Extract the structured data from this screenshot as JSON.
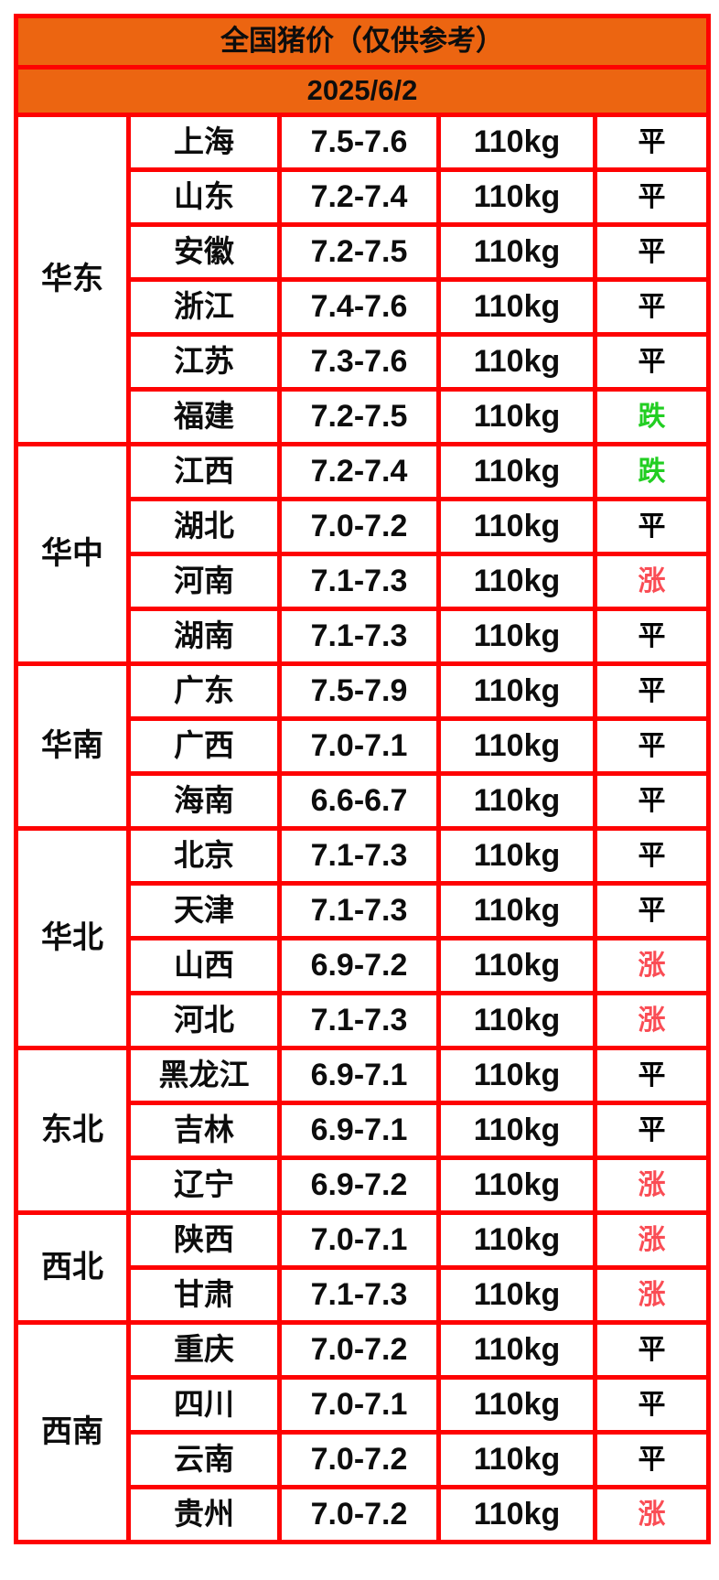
{
  "header": {
    "title": "全国猪价（仅供参考）",
    "date": "2025/6/2"
  },
  "table": {
    "regions": [
      {
        "name": "华东",
        "rows": [
          {
            "province": "上海",
            "price": "7.5-7.6",
            "weight": "110kg",
            "trend": "平"
          },
          {
            "province": "山东",
            "price": "7.2-7.4",
            "weight": "110kg",
            "trend": "平"
          },
          {
            "province": "安徽",
            "price": "7.2-7.5",
            "weight": "110kg",
            "trend": "平"
          },
          {
            "province": "浙江",
            "price": "7.4-7.6",
            "weight": "110kg",
            "trend": "平"
          },
          {
            "province": "江苏",
            "price": "7.3-7.6",
            "weight": "110kg",
            "trend": "平"
          },
          {
            "province": "福建",
            "price": "7.2-7.5",
            "weight": "110kg",
            "trend": "跌"
          }
        ]
      },
      {
        "name": "华中",
        "rows": [
          {
            "province": "江西",
            "price": "7.2-7.4",
            "weight": "110kg",
            "trend": "跌"
          },
          {
            "province": "湖北",
            "price": "7.0-7.2",
            "weight": "110kg",
            "trend": "平"
          },
          {
            "province": "河南",
            "price": "7.1-7.3",
            "weight": "110kg",
            "trend": "涨"
          },
          {
            "province": "湖南",
            "price": "7.1-7.3",
            "weight": "110kg",
            "trend": "平"
          }
        ]
      },
      {
        "name": "华南",
        "rows": [
          {
            "province": "广东",
            "price": "7.5-7.9",
            "weight": "110kg",
            "trend": "平"
          },
          {
            "province": "广西",
            "price": "7.0-7.1",
            "weight": "110kg",
            "trend": "平"
          },
          {
            "province": "海南",
            "price": "6.6-6.7",
            "weight": "110kg",
            "trend": "平"
          }
        ]
      },
      {
        "name": "华北",
        "rows": [
          {
            "province": "北京",
            "price": "7.1-7.3",
            "weight": "110kg",
            "trend": "平"
          },
          {
            "province": "天津",
            "price": "7.1-7.3",
            "weight": "110kg",
            "trend": "平"
          },
          {
            "province": "山西",
            "price": "6.9-7.2",
            "weight": "110kg",
            "trend": "涨"
          },
          {
            "province": "河北",
            "price": "7.1-7.3",
            "weight": "110kg",
            "trend": "涨"
          }
        ]
      },
      {
        "name": "东北",
        "rows": [
          {
            "province": "黑龙江",
            "price": "6.9-7.1",
            "weight": "110kg",
            "trend": "平"
          },
          {
            "province": "吉林",
            "price": "6.9-7.1",
            "weight": "110kg",
            "trend": "平"
          },
          {
            "province": "辽宁",
            "price": "6.9-7.2",
            "weight": "110kg",
            "trend": "涨"
          }
        ]
      },
      {
        "name": "西北",
        "rows": [
          {
            "province": "陕西",
            "price": "7.0-7.1",
            "weight": "110kg",
            "trend": "涨"
          },
          {
            "province": "甘肃",
            "price": "7.1-7.3",
            "weight": "110kg",
            "trend": "涨"
          }
        ]
      },
      {
        "name": "西南",
        "rows": [
          {
            "province": "重庆",
            "price": "7.0-7.2",
            "weight": "110kg",
            "trend": "平"
          },
          {
            "province": "四川",
            "price": "7.0-7.1",
            "weight": "110kg",
            "trend": "平"
          },
          {
            "province": "云南",
            "price": "7.0-7.2",
            "weight": "110kg",
            "trend": "平"
          },
          {
            "province": "贵州",
            "price": "7.0-7.2",
            "weight": "110kg",
            "trend": "涨"
          }
        ]
      }
    ]
  },
  "colors": {
    "header_orange": "#EC6511",
    "border_red": "#FE0202",
    "trend_up": "#FA4D55",
    "trend_down": "#22CE22",
    "trend_flat": "#000000"
  },
  "trend_color_map": {
    "涨": "trend_up",
    "跌": "trend_down",
    "平": "trend_flat"
  }
}
